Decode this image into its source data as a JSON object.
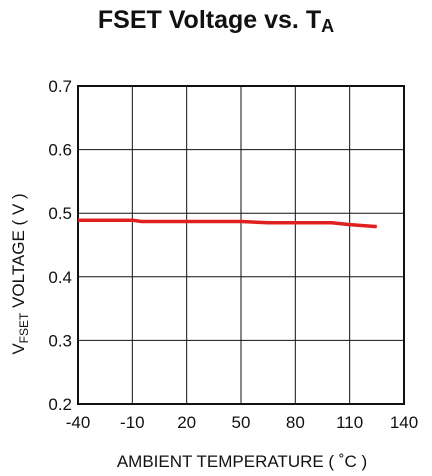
{
  "title": {
    "main": "FSET Voltage  vs. T",
    "sub": "A"
  },
  "chart_data": {
    "type": "line",
    "title": "FSET Voltage  vs. TA",
    "xlabel": "AMBIENT TEMPERATURE ( ˚C )",
    "ylabel": "VFSET  VOLTAGE ( V )",
    "ylabel_parts": {
      "pre": "V",
      "sub": "FSET",
      "post": "  VOLTAGE ( V )"
    },
    "xlim": [
      -40,
      140
    ],
    "ylim": [
      0.2,
      0.7
    ],
    "xticks": [
      "-40",
      "-10",
      "20",
      "50",
      "80",
      "110",
      "140"
    ],
    "yticks": [
      "0.2",
      "0.3",
      "0.4",
      "0.5",
      "0.6",
      "0.7"
    ],
    "grid": true,
    "line_color": "#e02020",
    "series": [
      {
        "x": [
          -40,
          -10,
          -5,
          20,
          50,
          65,
          80,
          100,
          110,
          125
        ],
        "y": [
          0.489,
          0.489,
          0.487,
          0.487,
          0.487,
          0.485,
          0.485,
          0.485,
          0.482,
          0.479
        ]
      }
    ]
  }
}
